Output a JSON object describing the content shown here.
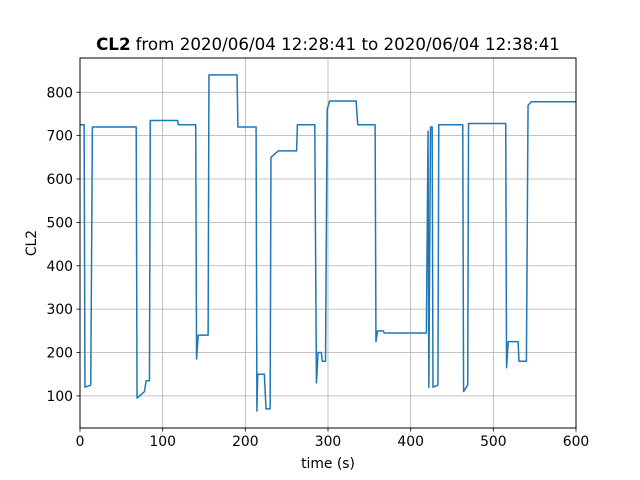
{
  "chart_data": {
    "type": "line",
    "title_bold": "CL2",
    "title": "from 2020/06/04 12:28:41 to 2020/06/04 12:38:41",
    "x_label": "time (s)",
    "y_label": "CL2",
    "xlim": [
      0,
      600
    ],
    "xticks": [
      0,
      100,
      200,
      300,
      400,
      500,
      600
    ],
    "ylim": [
      26,
      879
    ],
    "yticks": [
      100,
      200,
      300,
      400,
      500,
      600,
      700,
      800
    ],
    "grid": true,
    "series": [
      {
        "color": "#1f77b4",
        "x": [
          0,
          5,
          6,
          13,
          15,
          68,
          69,
          78,
          80,
          84,
          85,
          118,
          119,
          140,
          141,
          143,
          155,
          156,
          190,
          191,
          213,
          214,
          215,
          223,
          225,
          230,
          231,
          240,
          262,
          263,
          284,
          286,
          288,
          292,
          293,
          297,
          299,
          302,
          334,
          336,
          357,
          358,
          360,
          367,
          368,
          419,
          421,
          422,
          424,
          426,
          427,
          433,
          434,
          463,
          464,
          469,
          470,
          515,
          516,
          518,
          530,
          531,
          540,
          542,
          546,
          600
        ],
        "values": [
          725,
          725,
          120,
          125,
          720,
          720,
          95,
          110,
          135,
          135,
          735,
          735,
          725,
          725,
          185,
          240,
          240,
          840,
          840,
          720,
          720,
          65,
          150,
          150,
          70,
          70,
          650,
          665,
          665,
          725,
          725,
          130,
          200,
          200,
          180,
          180,
          760,
          780,
          780,
          725,
          725,
          225,
          250,
          250,
          245,
          245,
          710,
          120,
          720,
          720,
          120,
          125,
          725,
          725,
          110,
          125,
          728,
          728,
          165,
          225,
          225,
          180,
          180,
          770,
          778,
          778
        ]
      }
    ]
  }
}
